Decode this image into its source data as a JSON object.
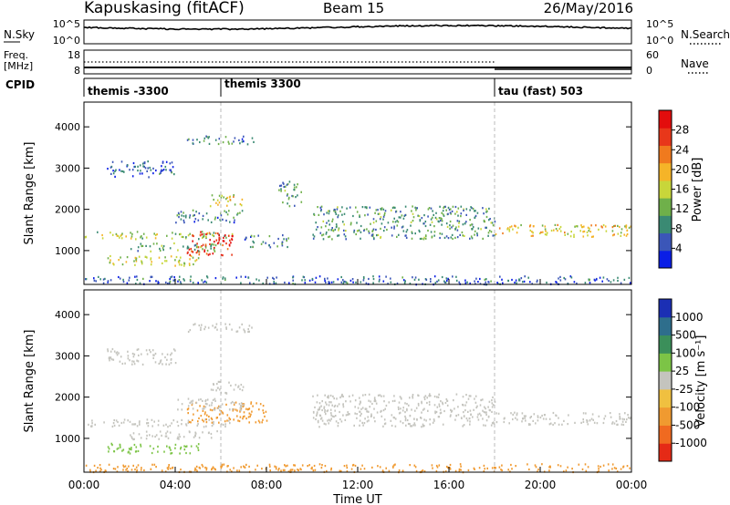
{
  "header": {
    "station": "Kapuskasing (fitACF)",
    "beam": "Beam 15",
    "date": "26/May/2016"
  },
  "noise_panel": {
    "left_label": "N.Sky",
    "right_label": "N.Search",
    "left_ticks": [
      "10^5",
      "10^0"
    ],
    "right_ticks": [
      "10^5",
      "10^0"
    ]
  },
  "freq_panel": {
    "left_label_1": "Freq.",
    "left_label_2": "[MHz]",
    "left_ticks": [
      "18",
      "8"
    ],
    "right_label": "Nave",
    "right_ticks": [
      "60",
      "0"
    ]
  },
  "cpid_panel": {
    "label": "CPID",
    "programs": [
      {
        "name": "themis -3300",
        "start_hour": 0
      },
      {
        "name": "themis 3300",
        "start_hour": 6
      },
      {
        "name": "tau (fast) 503",
        "start_hour": 18
      }
    ]
  },
  "x_axis": {
    "label": "Time UT",
    "ticks": [
      "00:00",
      "04:00",
      "08:00",
      "12:00",
      "16:00",
      "20:00",
      "00:00"
    ],
    "range_hours": [
      0,
      24
    ]
  },
  "y_axis": {
    "label": "Slant Range [km]",
    "ticks": [
      "1000",
      "2000",
      "3000",
      "4000"
    ],
    "range_km": [
      180,
      4600
    ]
  },
  "power_colorbar": {
    "label": "Power [dB]",
    "ticks": [
      "4",
      "8",
      "12",
      "16",
      "20",
      "24",
      "28"
    ],
    "colors": [
      "#0a1ee6",
      "#3b56b8",
      "#3a8a73",
      "#6fb04a",
      "#c8d63a",
      "#f5b428",
      "#f07a1e",
      "#e8371a",
      "#e30d0d"
    ]
  },
  "velocity_colorbar": {
    "label": "Velocity [m s⁻¹]",
    "ticks": [
      "1000",
      "500",
      "100",
      "25",
      "-25",
      "-100",
      "-500",
      "-1000"
    ],
    "colors": [
      "#1b2fb4",
      "#2e6e8c",
      "#3b8f5a",
      "#7cc446",
      "#c4c4be",
      "#f0c040",
      "#f09a30",
      "#f06a20",
      "#e52a16"
    ]
  },
  "chart_data": {
    "type": "heatmap",
    "title": "Kapuskasing (fitACF)  Beam 15  26/May/2016",
    "xlabel": "Time UT",
    "ylabel": "Slant Range [km]",
    "xlim_hours": [
      0,
      24
    ],
    "ylim_km": [
      180,
      4600
    ],
    "power_panel": {
      "colorbar_label": "Power [dB]",
      "scatter_regions": [
        {
          "t": [
            0.0,
            6.5
          ],
          "r": [
            1300,
            1480
          ],
          "power_db": 14
        },
        {
          "t": [
            4.5,
            6.5
          ],
          "r": [
            900,
            1500
          ],
          "power_db": 28
        },
        {
          "t": [
            1.0,
            5.0
          ],
          "r": [
            650,
            900
          ],
          "power_db": 16
        },
        {
          "t": [
            2.0,
            6.0
          ],
          "r": [
            1000,
            1200
          ],
          "power_db": 10
        },
        {
          "t": [
            5.5,
            7.0
          ],
          "r": [
            2100,
            2400
          ],
          "power_db": 18
        },
        {
          "t": [
            4.0,
            7.0
          ],
          "r": [
            1700,
            2000
          ],
          "power_db": 8
        },
        {
          "t": [
            1.0,
            4.0
          ],
          "r": [
            2800,
            3200
          ],
          "power_db": 6
        },
        {
          "t": [
            4.5,
            7.5
          ],
          "r": [
            3600,
            3800
          ],
          "power_db": 8
        },
        {
          "t": [
            7.0,
            9.0
          ],
          "r": [
            1100,
            1400
          ],
          "power_db": 8
        },
        {
          "t": [
            8.5,
            9.5
          ],
          "r": [
            2100,
            2700
          ],
          "power_db": 10
        },
        {
          "t": [
            10.0,
            18.0
          ],
          "r": [
            1300,
            2100
          ],
          "power_db": 10
        },
        {
          "t": [
            18.0,
            24.0
          ],
          "r": [
            1350,
            1650
          ],
          "power_db": 18
        },
        {
          "t": [
            0.0,
            24.0
          ],
          "r": [
            200,
            400
          ],
          "power_db": 6
        }
      ]
    },
    "velocity_panel": {
      "colorbar_label": "Velocity [m s⁻¹]",
      "scatter_regions": [
        {
          "t": [
            0.0,
            6.5
          ],
          "r": [
            1300,
            1480
          ],
          "velocity": 0
        },
        {
          "t": [
            4.5,
            8.0
          ],
          "r": [
            1400,
            1900
          ],
          "velocity": -300
        },
        {
          "t": [
            1.0,
            5.0
          ],
          "r": [
            650,
            900
          ],
          "velocity": 60
        },
        {
          "t": [
            2.0,
            6.0
          ],
          "r": [
            1000,
            1200
          ],
          "velocity": 0
        },
        {
          "t": [
            5.5,
            7.0
          ],
          "r": [
            2100,
            2400
          ],
          "velocity": 0
        },
        {
          "t": [
            4.0,
            7.0
          ],
          "r": [
            1700,
            2000
          ],
          "velocity": 0
        },
        {
          "t": [
            1.0,
            4.0
          ],
          "r": [
            2800,
            3200
          ],
          "velocity": 0
        },
        {
          "t": [
            4.5,
            7.5
          ],
          "r": [
            3600,
            3800
          ],
          "velocity": 0
        },
        {
          "t": [
            10.0,
            18.0
          ],
          "r": [
            1300,
            2100
          ],
          "velocity": 0
        },
        {
          "t": [
            18.0,
            24.0
          ],
          "r": [
            1350,
            1650
          ],
          "velocity": 0
        },
        {
          "t": [
            0.0,
            24.0
          ],
          "r": [
            200,
            400
          ],
          "velocity": -150
        }
      ]
    }
  }
}
